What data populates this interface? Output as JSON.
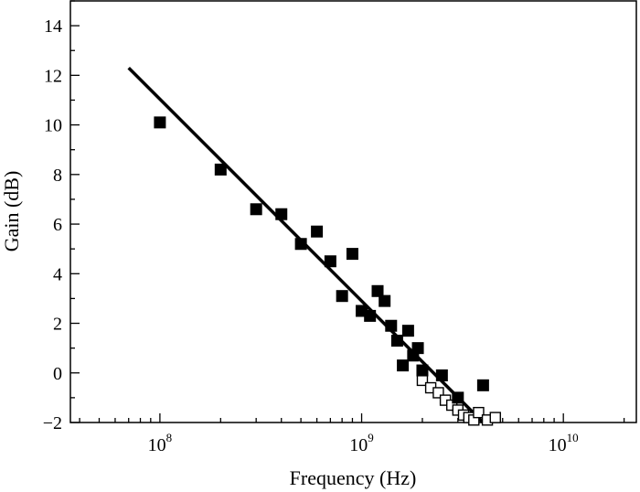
{
  "chart_data": {
    "type": "scatter",
    "title": "",
    "xlabel": "Frequency (Hz)",
    "ylabel": "Gain (dB)",
    "x_scale": "log",
    "xlim": [
      36000000.0,
      23000000000.0
    ],
    "ylim": [
      -2,
      15
    ],
    "x_ticks": [
      {
        "value": 100000000.0,
        "base": "10",
        "exp": "8"
      },
      {
        "value": 1000000000.0,
        "base": "10",
        "exp": "9"
      },
      {
        "value": 10000000000.0,
        "base": "10",
        "exp": "10"
      }
    ],
    "y_ticks": [
      "-2",
      "0",
      "2",
      "4",
      "6",
      "8",
      "10",
      "12",
      "14"
    ],
    "grid": false,
    "series": [
      {
        "marker": "filled-square",
        "points": [
          [
            100000000.0,
            10.1
          ],
          [
            200000000.0,
            8.2
          ],
          [
            300000000.0,
            6.6
          ],
          [
            400000000.0,
            6.4
          ],
          [
            500000000.0,
            5.2
          ],
          [
            600000000.0,
            5.7
          ],
          [
            700000000.0,
            4.5
          ],
          [
            800000000.0,
            3.1
          ],
          [
            900000000.0,
            4.8
          ],
          [
            1000000000.0,
            2.5
          ],
          [
            1100000000.0,
            2.3
          ],
          [
            1200000000.0,
            3.3
          ],
          [
            1300000000.0,
            2.9
          ],
          [
            1400000000.0,
            1.9
          ],
          [
            1500000000.0,
            1.3
          ],
          [
            1600000000.0,
            0.3
          ],
          [
            1700000000.0,
            1.7
          ],
          [
            1800000000.0,
            0.7
          ],
          [
            1900000000.0,
            1.0
          ],
          [
            2000000000.0,
            0.1
          ],
          [
            2500000000.0,
            -0.1
          ],
          [
            3000000000.0,
            -1.0
          ],
          [
            4000000000.0,
            -0.5
          ]
        ]
      },
      {
        "marker": "open-square",
        "points": [
          [
            2000000000.0,
            -0.3
          ],
          [
            2200000000.0,
            -0.6
          ],
          [
            2400000000.0,
            -0.8
          ],
          [
            2600000000.0,
            -1.1
          ],
          [
            2800000000.0,
            -1.3
          ],
          [
            3000000000.0,
            -1.5
          ],
          [
            3200000000.0,
            -1.7
          ],
          [
            3400000000.0,
            -1.8
          ],
          [
            3600000000.0,
            -1.9
          ],
          [
            3800000000.0,
            -1.6
          ],
          [
            4200000000.0,
            -1.9
          ],
          [
            4600000000.0,
            -1.8
          ]
        ]
      },
      {
        "type": "line",
        "points": [
          [
            70000000.0,
            12.3
          ],
          [
            4000000000.0,
            -2.0
          ]
        ]
      }
    ]
  }
}
